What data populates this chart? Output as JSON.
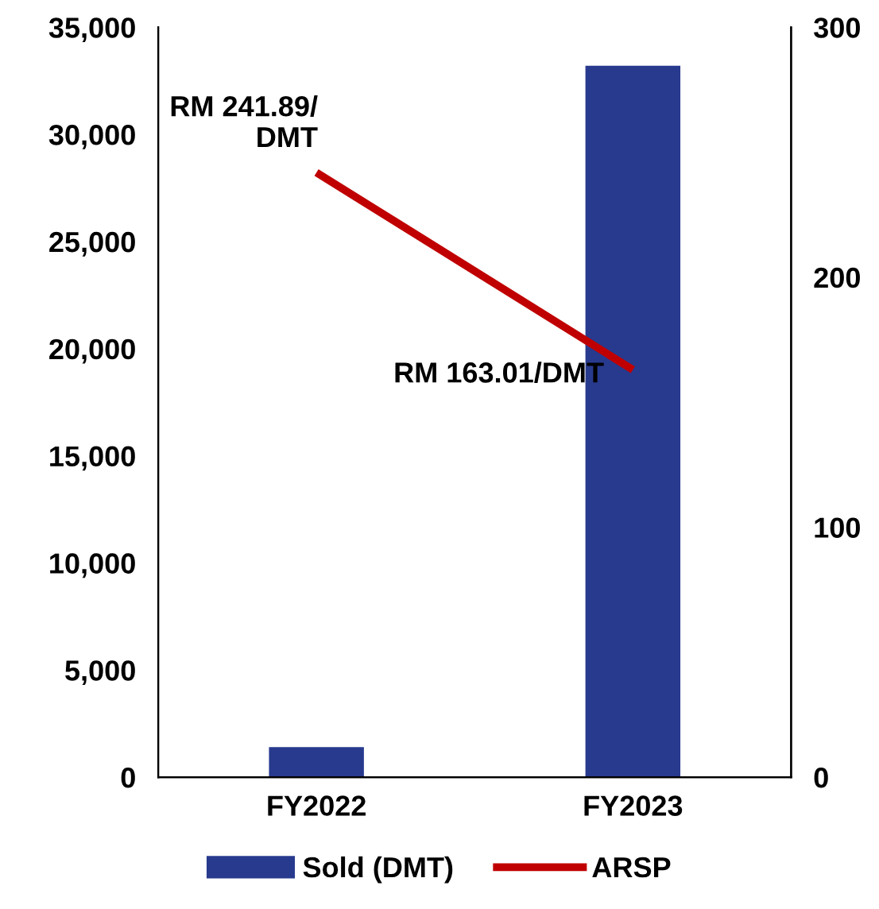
{
  "chart_data": {
    "type": "bar",
    "categories": [
      "FY2022",
      "FY2023"
    ],
    "series": [
      {
        "name": "Sold (DMT)",
        "color": "#283a8e",
        "values": [
          1400,
          33200
        ]
      },
      {
        "name": "ARSP",
        "type": "line",
        "axis": "y2",
        "color": "#c00000",
        "values": [
          241.89,
          163.01
        ],
        "marker": "none"
      }
    ],
    "ylim": [
      0,
      35000
    ],
    "yticks": [
      {
        "value": 0,
        "label": "0"
      },
      {
        "value": 5000,
        "label": "5,000"
      },
      {
        "value": 10000,
        "label": "10,000"
      },
      {
        "value": 15000,
        "label": "15,000"
      },
      {
        "value": 20000,
        "label": "20,000"
      },
      {
        "value": 25000,
        "label": "25,000"
      },
      {
        "value": 30000,
        "label": "30,000"
      },
      {
        "value": 35000,
        "label": "35,000"
      }
    ],
    "y2lim": [
      0,
      300
    ],
    "y2ticks": [
      0,
      100,
      200,
      300
    ],
    "annotations": [
      "RM 241.89/\nDMT",
      "RM 163.01/DMT"
    ],
    "legend": "bottom",
    "grid": false
  }
}
